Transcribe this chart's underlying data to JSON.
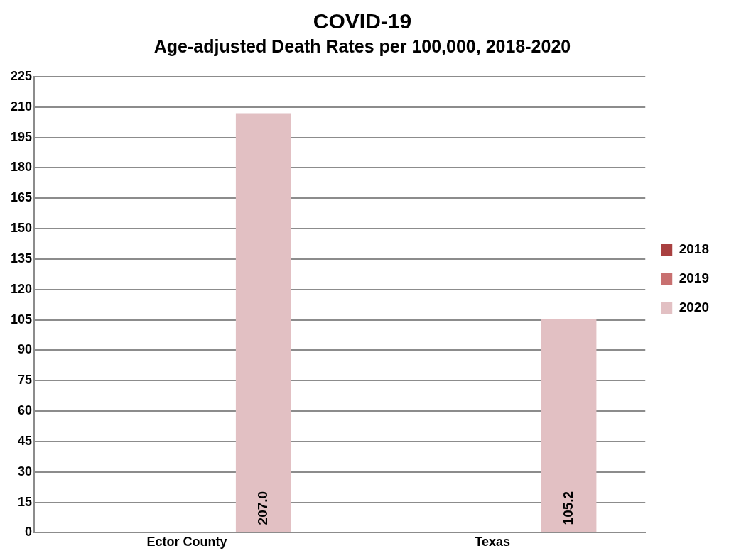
{
  "chart_data": {
    "type": "bar",
    "title": "COVID-19",
    "subtitle": "Age-adjusted Death Rates per 100,000, 2018-2020",
    "categories": [
      "Ector County",
      "Texas"
    ],
    "series": [
      {
        "name": "2018",
        "color": "#a94040",
        "values": [
          null,
          null
        ]
      },
      {
        "name": "2019",
        "color": "#c87070",
        "values": [
          null,
          null
        ]
      },
      {
        "name": "2020",
        "color": "#e2c0c3",
        "values": [
          207.0,
          105.2
        ],
        "value_labels": [
          "207.0",
          "105.2"
        ]
      }
    ],
    "ylim": [
      0,
      225
    ],
    "yticks": [
      0,
      15,
      30,
      45,
      60,
      75,
      90,
      105,
      120,
      135,
      150,
      165,
      180,
      195,
      210,
      225
    ],
    "grid": "y",
    "legend": "right"
  }
}
